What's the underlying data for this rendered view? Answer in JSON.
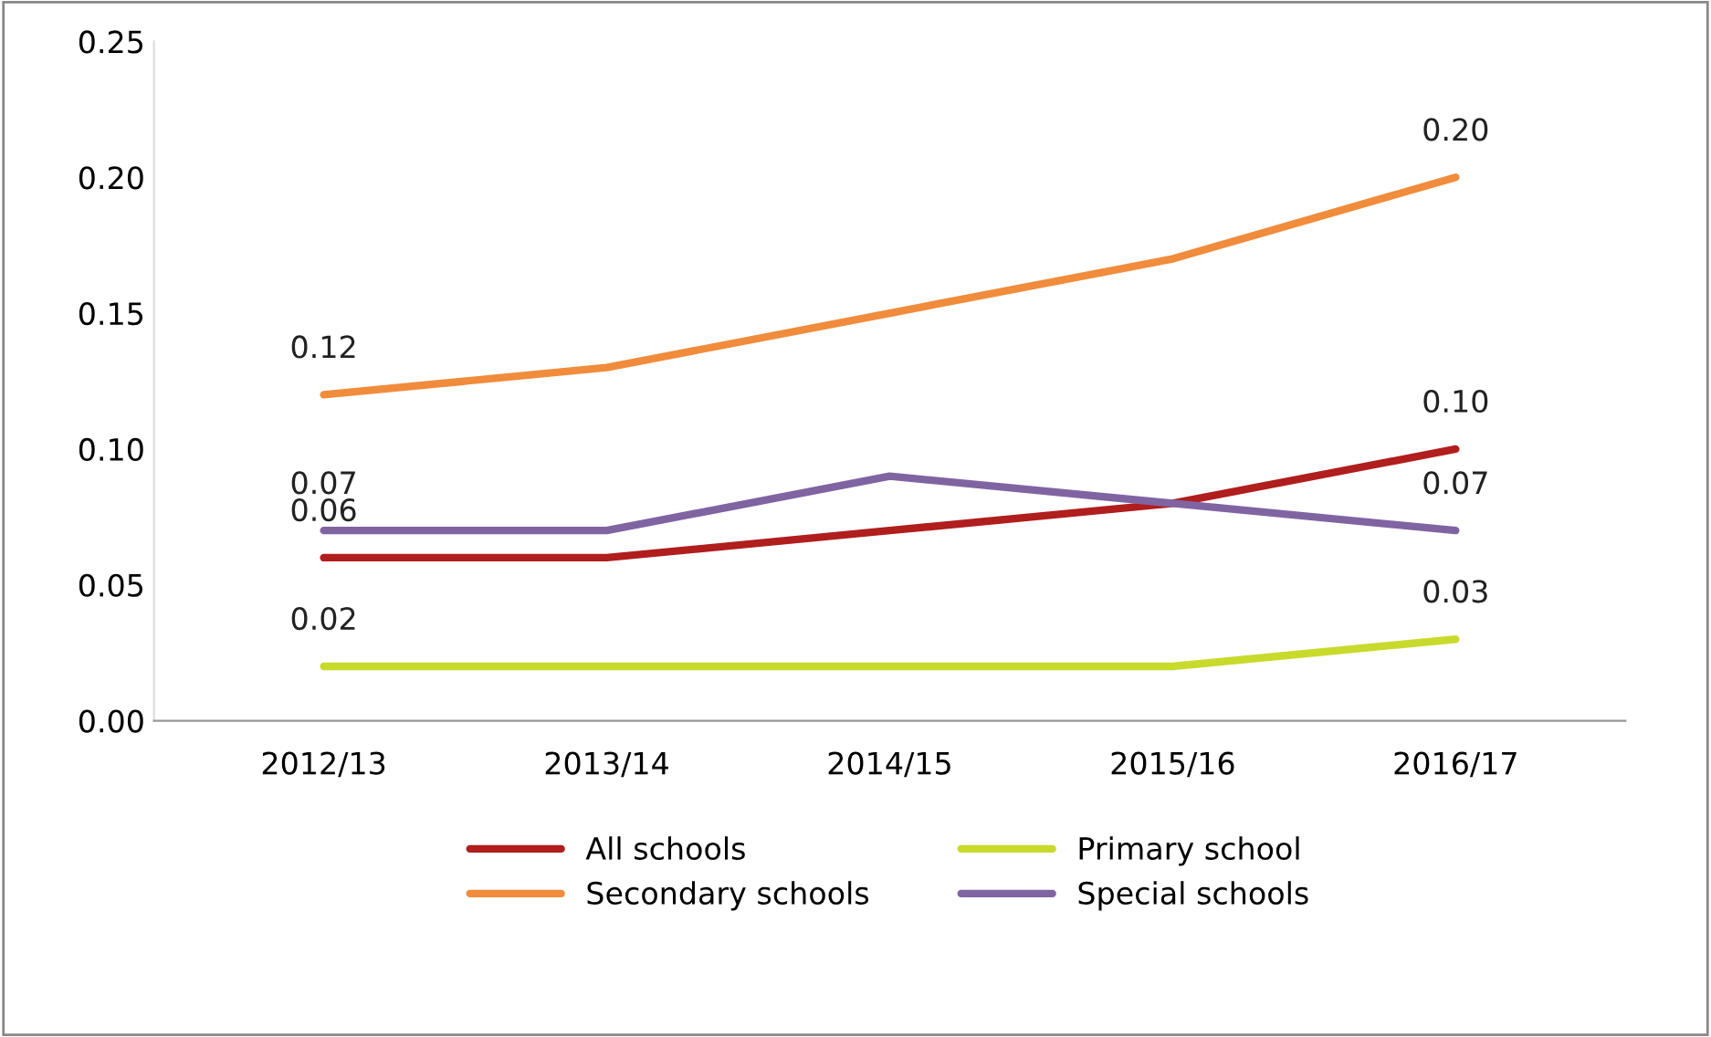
{
  "chart_data": {
    "type": "line",
    "categories": [
      "2012/13",
      "2013/14",
      "2014/15",
      "2015/16",
      "2016/17"
    ],
    "series": [
      {
        "name": "All schools",
        "color": "#b01e1e",
        "values": [
          0.06,
          0.06,
          0.07,
          0.08,
          0.1
        ],
        "value_labels": [
          "0.06",
          null,
          null,
          null,
          "0.10"
        ]
      },
      {
        "name": "Primary school",
        "color": "#c8da2b",
        "values": [
          0.02,
          0.02,
          0.02,
          0.02,
          0.03
        ],
        "value_labels": [
          "0.02",
          null,
          null,
          null,
          "0.03"
        ]
      },
      {
        "name": "Secondary schools",
        "color": "#f08c3c",
        "values": [
          0.12,
          0.13,
          0.15,
          0.17,
          0.2
        ],
        "value_labels": [
          "0.12",
          null,
          null,
          null,
          "0.20"
        ]
      },
      {
        "name": "Special schools",
        "color": "#8064a2",
        "values": [
          0.07,
          0.07,
          0.09,
          0.08,
          0.07
        ],
        "value_labels": [
          "0.07",
          null,
          null,
          null,
          "0.07"
        ]
      }
    ],
    "ylim": [
      0,
      0.25
    ],
    "yticks": [
      "0.00",
      "0.05",
      "0.10",
      "0.15",
      "0.20",
      "0.25"
    ],
    "grid": false,
    "legend": "bottom",
    "marker": "none",
    "line_style": "solid"
  }
}
